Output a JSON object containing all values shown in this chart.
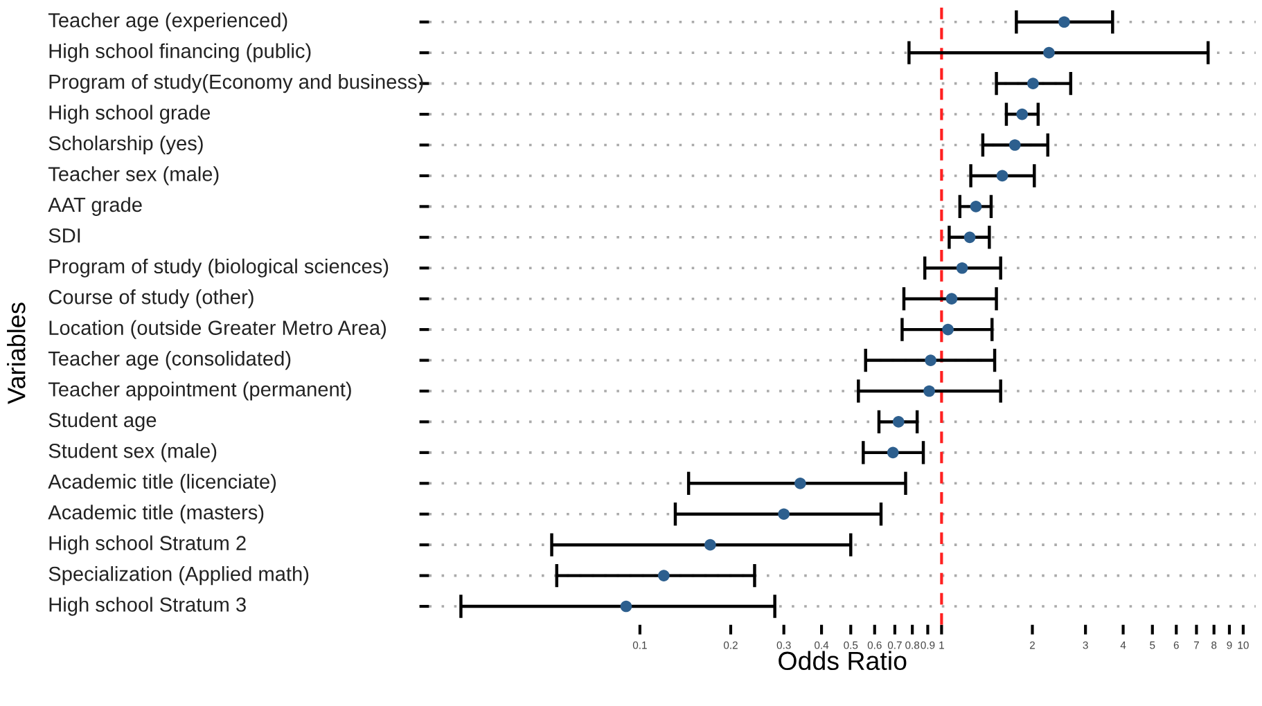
{
  "chart_data": {
    "type": "scatter",
    "orientation": "horizontal",
    "xlabel": "Odds Ratio",
    "ylabel": "Variables",
    "categories": [
      "Teacher age (experienced)",
      "High school financing (public)",
      "Program of study(Economy and business)",
      "High school grade",
      "Scholarship (yes)",
      "Teacher sex (male)",
      "AAT grade",
      "SDI",
      "Program of study (biological sciences)",
      "Course of study (other)",
      "Location (outside Greater Metro Area)",
      "Teacher age (consolidated)",
      "Teacher appointment (permanent)",
      "Student age",
      "Student sex (male)",
      "Academic title (licenciate)",
      "Academic title (masters)",
      "High school Stratum 2",
      "Specialization (Applied math)",
      "High school Stratum 3"
    ],
    "values": [
      2.55,
      2.27,
      2.01,
      1.85,
      1.75,
      1.59,
      1.3,
      1.24,
      1.17,
      1.08,
      1.05,
      0.92,
      0.91,
      0.72,
      0.69,
      0.34,
      0.3,
      0.171,
      0.12,
      0.09
    ],
    "errors": [
      [
        1.77,
        3.69
      ],
      [
        0.78,
        7.65
      ],
      [
        1.52,
        2.68
      ],
      [
        1.64,
        2.09
      ],
      [
        1.37,
        2.25
      ],
      [
        1.25,
        2.03
      ],
      [
        1.15,
        1.46
      ],
      [
        1.06,
        1.44
      ],
      [
        0.88,
        1.57
      ],
      [
        0.75,
        1.52
      ],
      [
        0.74,
        1.47
      ],
      [
        0.56,
        1.5
      ],
      [
        0.53,
        1.57
      ],
      [
        0.62,
        0.83
      ],
      [
        0.55,
        0.87
      ],
      [
        0.145,
        0.76
      ],
      [
        0.131,
        0.63
      ],
      [
        0.051,
        0.5
      ],
      [
        0.053,
        0.24
      ],
      [
        0.0255,
        0.28
      ]
    ],
    "color": "#2d5f8e",
    "marker": "circle",
    "log": "x",
    "xlim": [
      0.02,
      11
    ],
    "xticks": [
      0.1,
      0.2,
      0.3,
      0.4,
      0.5,
      0.6,
      0.7,
      0.8,
      0.9,
      1,
      2,
      3,
      4,
      5,
      6,
      7,
      8,
      9,
      10
    ],
    "ref_lines": [
      {
        "axis": "x",
        "value": 1,
        "color": "#ff2020",
        "line_style": "dashed"
      }
    ],
    "grid": "y",
    "legend": false
  }
}
